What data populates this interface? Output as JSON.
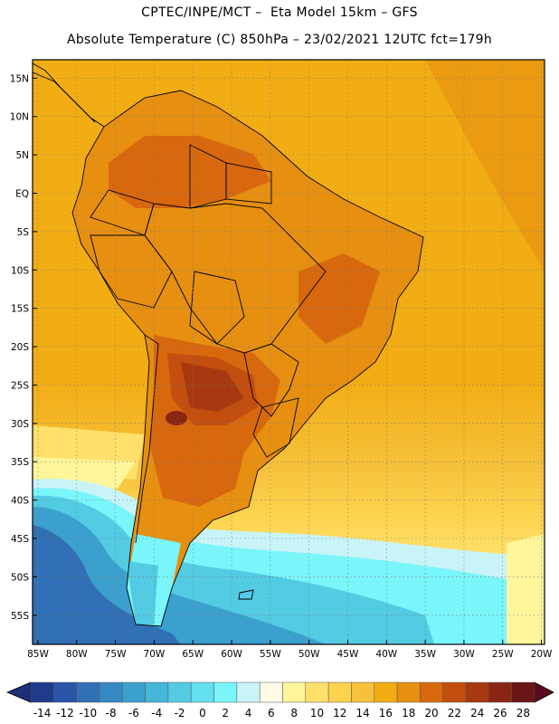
{
  "header": {
    "line1": "CPTEC/INPE/MCT –  Eta Model 15km – GFS",
    "line2": "Absolute Temperature (C) 850hPa – 23/02/2021 12UTC fct=179h"
  },
  "map": {
    "lat_labels": [
      "15N",
      "10N",
      "5N",
      "EQ",
      "5S",
      "10S",
      "15S",
      "20S",
      "25S",
      "30S",
      "35S",
      "40S",
      "45S",
      "50S",
      "55S"
    ],
    "lon_labels": [
      "85W",
      "80W",
      "75W",
      "70W",
      "65W",
      "60W",
      "55W",
      "50W",
      "45W",
      "40W",
      "35W",
      "30W",
      "25W",
      "20W"
    ],
    "lat_values": [
      15,
      10,
      5,
      0,
      -5,
      -10,
      -15,
      -20,
      -25,
      -30,
      -35,
      -40,
      -45,
      -50,
      -55
    ],
    "lon_values": [
      -85,
      -80,
      -75,
      -70,
      -65,
      -60,
      -55,
      -50,
      -45,
      -40,
      -35,
      -30,
      -25,
      -20
    ]
  },
  "colorbar": {
    "labels": [
      "-14",
      "-12",
      "-10",
      "-8",
      "-6",
      "-4",
      "-2",
      "0",
      "2",
      "4",
      "6",
      "8",
      "10",
      "12",
      "14",
      "16",
      "18",
      "20",
      "22",
      "24",
      "26",
      "28"
    ],
    "low_color": "#1f2f7a",
    "high_color": "#5c0a1e",
    "colors": [
      "#203a8c",
      "#2a55a6",
      "#3170b5",
      "#3688c2",
      "#3ba0ce",
      "#43b6d9",
      "#52cbe3",
      "#63dff0",
      "#7af5fa",
      "#c8f4f7",
      "#fffbe6",
      "#fff59a",
      "#ffe06a",
      "#fdd34e",
      "#f6c23c",
      "#f2ad14",
      "#e68f11",
      "#d8680e",
      "#c24e0f",
      "#a8380f",
      "#8a2513",
      "#6a1616"
    ]
  }
}
